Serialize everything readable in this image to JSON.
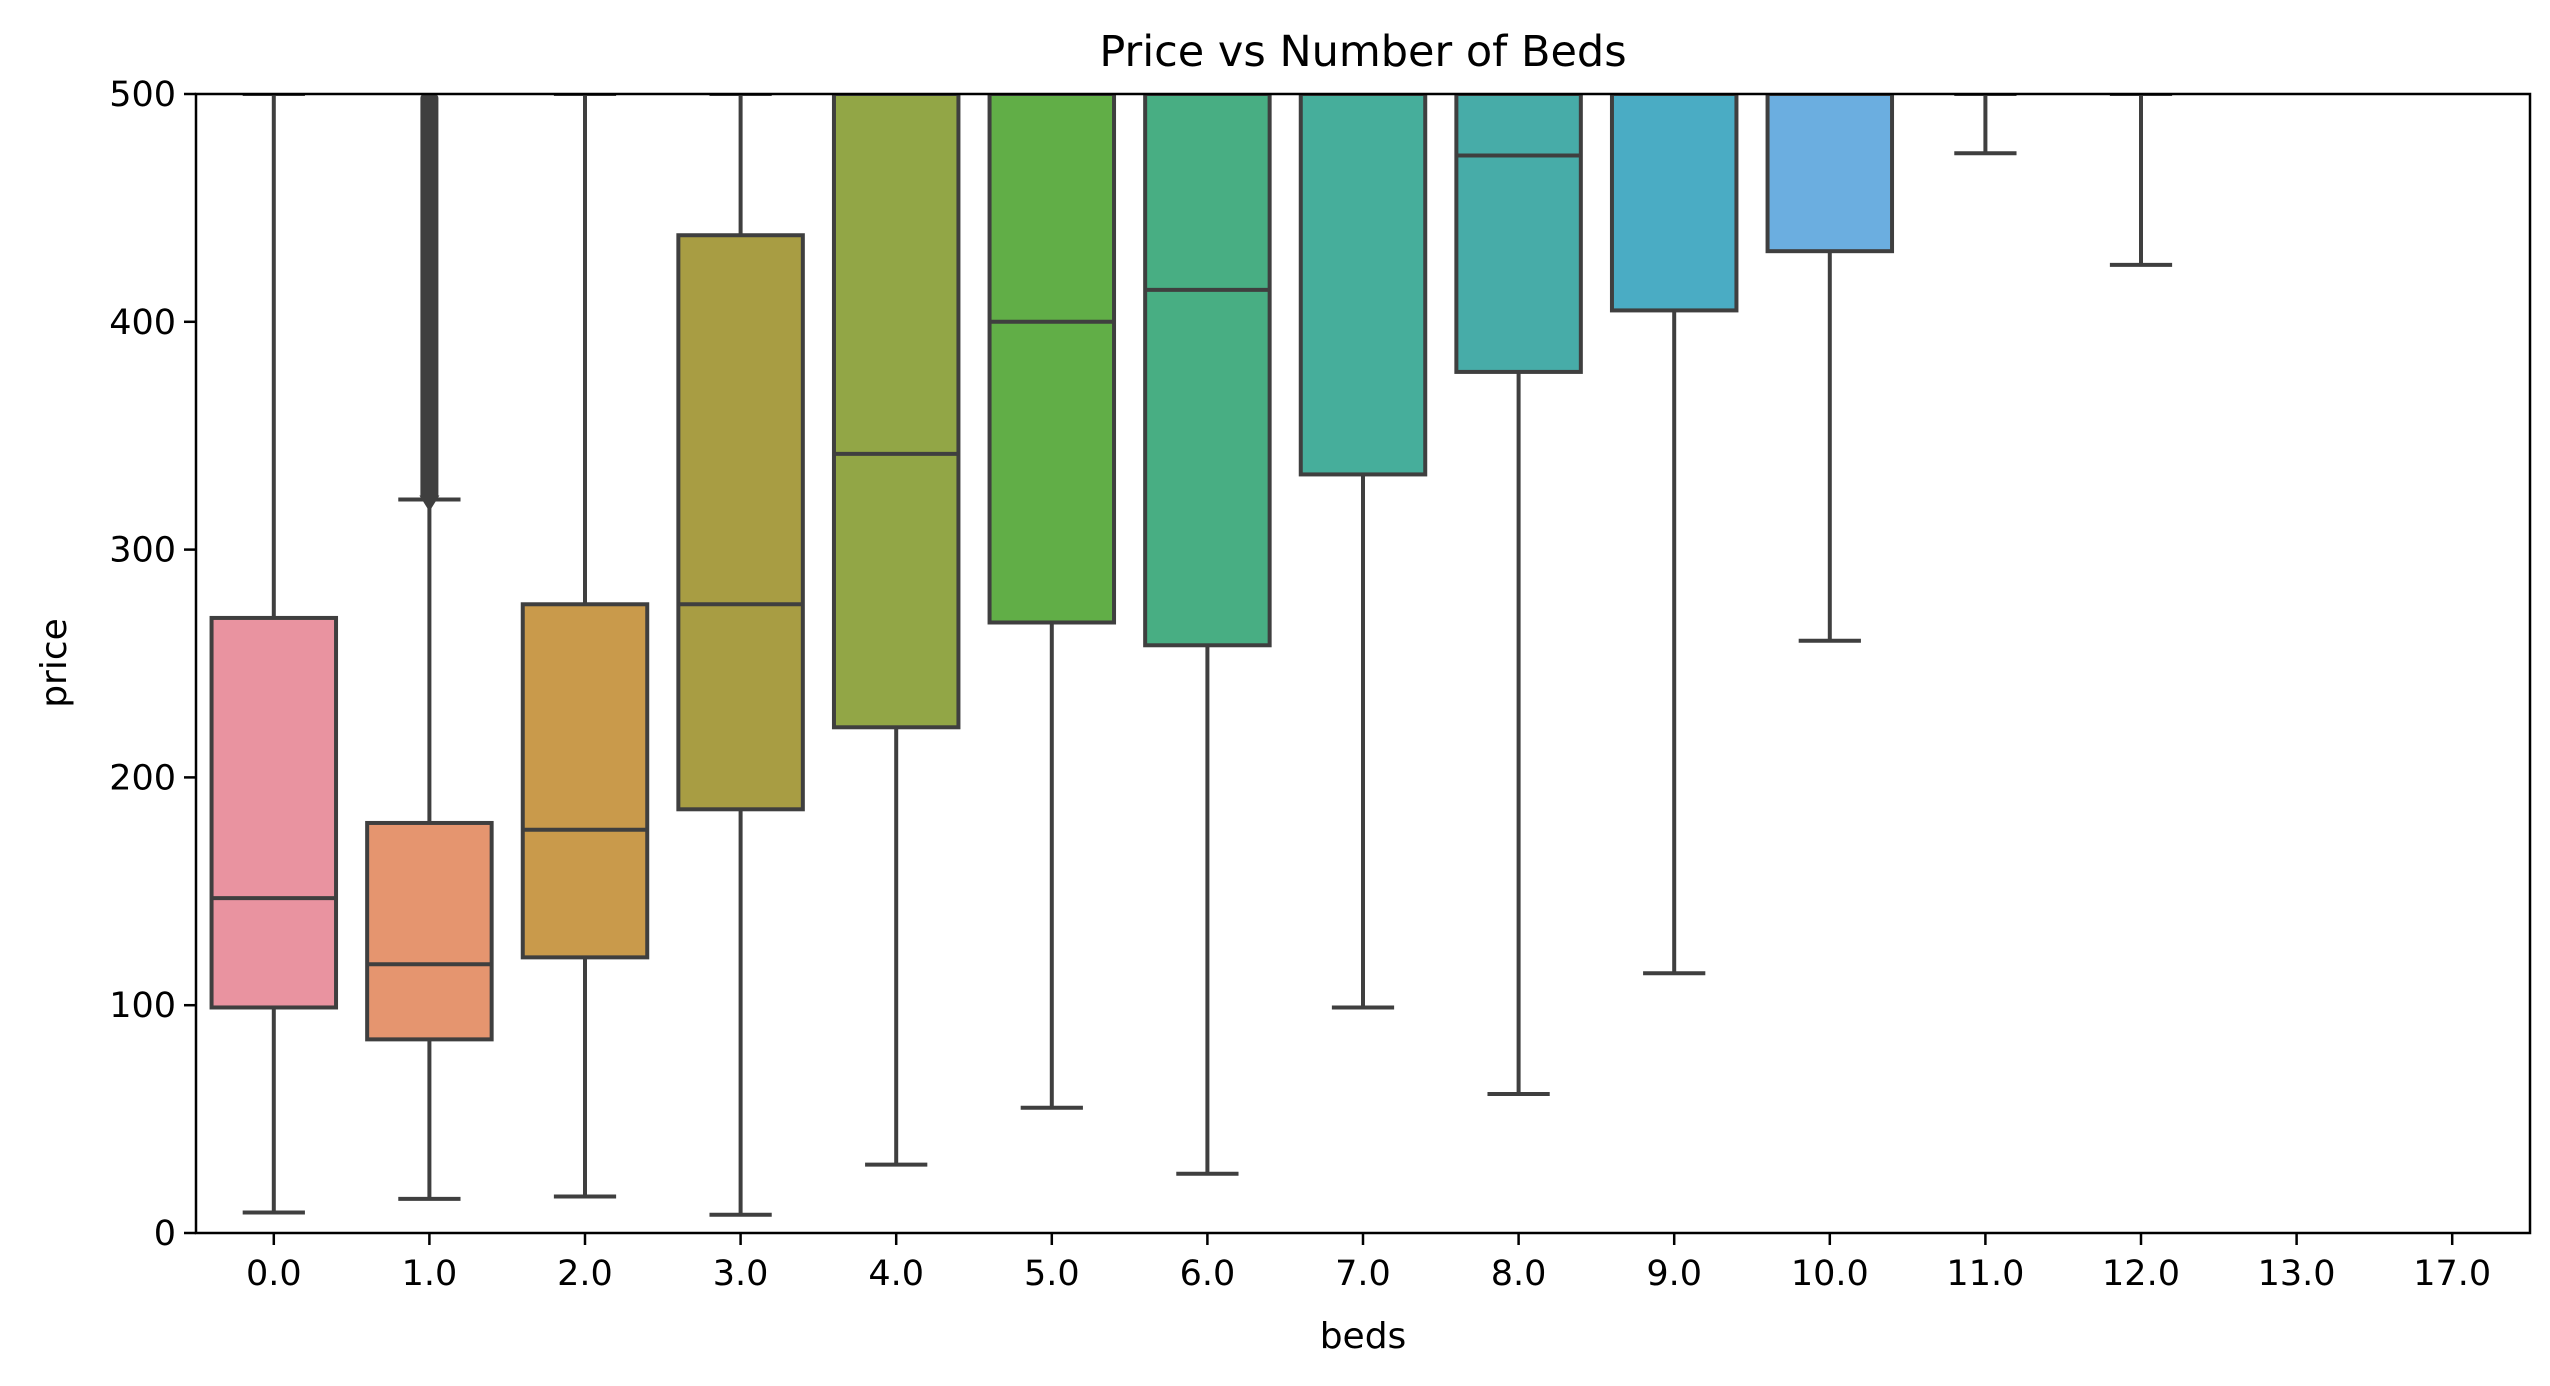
{
  "chart_data": {
    "type": "box",
    "title": "Price vs Number of Beds",
    "xlabel": "beds",
    "ylabel": "price",
    "ylim": [
      0,
      500
    ],
    "yticks": [
      0,
      100,
      200,
      300,
      400,
      500
    ],
    "grid": false,
    "categories": [
      "0.0",
      "1.0",
      "2.0",
      "3.0",
      "4.0",
      "5.0",
      "6.0",
      "7.0",
      "8.0",
      "9.0",
      "10.0",
      "11.0",
      "12.0",
      "13.0",
      "17.0"
    ],
    "boxes": [
      {
        "category": "0.0",
        "whisker_low": 9,
        "q1": 99,
        "median": 147,
        "q3": 270,
        "whisker_high": 500,
        "color": "#e993a0"
      },
      {
        "category": "1.0",
        "whisker_low": 15,
        "q1": 85,
        "median": 118,
        "q3": 180,
        "whisker_high": 322,
        "color": "#e5956f",
        "outliers": {
          "from": 322,
          "to": 500
        }
      },
      {
        "category": "2.0",
        "whisker_low": 16,
        "q1": 121,
        "median": 177,
        "q3": 276,
        "whisker_high": 500,
        "color": "#c99a4b"
      },
      {
        "category": "3.0",
        "whisker_low": 8,
        "q1": 186,
        "median": 276,
        "q3": 438,
        "whisker_high": 500,
        "color": "#a89d43"
      },
      {
        "category": "4.0",
        "whisker_low": 30,
        "q1": 222,
        "median": 342,
        "q3": 500,
        "whisker_high": 500,
        "color": "#92a646"
      },
      {
        "category": "5.0",
        "whisker_low": 55,
        "q1": 268,
        "median": 400,
        "q3": 500,
        "whisker_high": 500,
        "color": "#61ae47"
      },
      {
        "category": "6.0",
        "whisker_low": 26,
        "q1": 258,
        "median": 414,
        "q3": 500,
        "whisker_high": 500,
        "color": "#48ae83"
      },
      {
        "category": "7.0",
        "whisker_low": 99,
        "q1": 333,
        "median": 500,
        "q3": 500,
        "whisker_high": 500,
        "color": "#46ae9b"
      },
      {
        "category": "8.0",
        "whisker_low": 61,
        "q1": 378,
        "median": 473,
        "q3": 500,
        "whisker_high": 500,
        "color": "#47aca8"
      },
      {
        "category": "9.0",
        "whisker_low": 114,
        "q1": 405,
        "median": 500,
        "q3": 500,
        "whisker_high": 500,
        "color": "#4aacc4"
      },
      {
        "category": "10.0",
        "whisker_low": 260,
        "q1": 431,
        "median": 500,
        "q3": 500,
        "whisker_high": 500,
        "color": "#6baee0"
      },
      {
        "category": "11.0",
        "whisker_low": 474,
        "q1": 500,
        "median": 500,
        "q3": 500,
        "whisker_high": 500,
        "color": "#a4a8e8"
      },
      {
        "category": "12.0",
        "whisker_low": 425,
        "q1": 500,
        "median": 500,
        "q3": 500,
        "whisker_high": 500,
        "color": "#c89be6"
      },
      {
        "category": "13.0",
        "whisker_low": null,
        "q1": null,
        "median": null,
        "q3": null,
        "whisker_high": null,
        "color": "#e690e0"
      },
      {
        "category": "17.0",
        "whisker_low": null,
        "q1": null,
        "median": null,
        "q3": null,
        "whisker_high": null,
        "color": "#ea8fbe"
      }
    ]
  }
}
